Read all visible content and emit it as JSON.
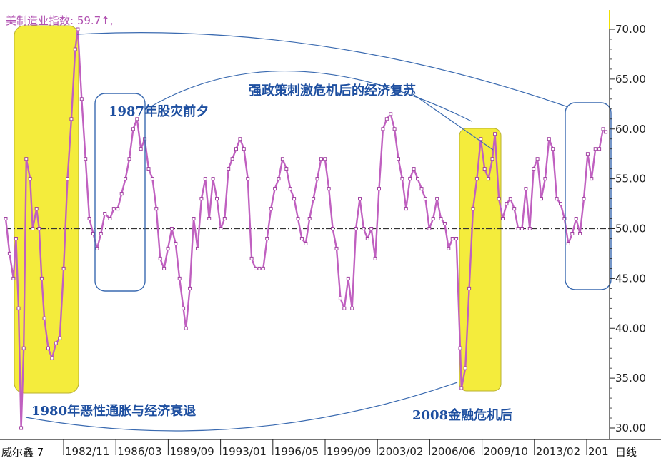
{
  "header": {
    "indicator_label": "美制造业指数: 59.7↑,"
  },
  "footer": {
    "left_label": "威尔鑫 7",
    "right_label": "日线"
  },
  "annotations": {
    "a1987": "1987年股灾前夕",
    "stimulus": "强政策刺激危机后的经济复苏",
    "a1980": "1980年恶性通胀与经济衰退",
    "a2008": "2008金融危机后"
  },
  "colors": {
    "series": "#c060c0",
    "highlight": "#f4ec3c",
    "box": "#3a6ab0",
    "axis": "#222222"
  },
  "chart_data": {
    "type": "line",
    "title": "",
    "xlabel": "",
    "ylabel": "",
    "ylim": [
      29.0,
      72.0
    ],
    "reference_line": 50.0,
    "x_tick_labels": [
      "1982/11",
      "1986/03",
      "1989/09",
      "1993/01",
      "1996/05",
      "1999/09",
      "2003/02",
      "2006/06",
      "2009/10",
      "2013/02",
      "201"
    ],
    "y_tick_labels": [
      "30.00",
      "35.00",
      "40.00",
      "45.00",
      "50.00",
      "55.00",
      "60.00",
      "65.00",
      "70.00"
    ],
    "series": [
      {
        "name": "",
        "points": [
          [
            "1979/06",
            51.0
          ],
          [
            "1979/09",
            47.5
          ],
          [
            "1979/12",
            45.0
          ],
          [
            "1980/02",
            49.0
          ],
          [
            "1980/04",
            42.0
          ],
          [
            "1980/06",
            30.0
          ],
          [
            "1980/08",
            38.0
          ],
          [
            "1980/10",
            57.0
          ],
          [
            "1981/01",
            55.0
          ],
          [
            "1981/03",
            50.0
          ],
          [
            "1981/06",
            52.0
          ],
          [
            "1981/08",
            50.0
          ],
          [
            "1981/10",
            45.0
          ],
          [
            "1981/12",
            41.0
          ],
          [
            "1982/03",
            38.0
          ],
          [
            "1982/06",
            37.0
          ],
          [
            "1982/09",
            38.5
          ],
          [
            "1982/12",
            39.0
          ],
          [
            "1983/03",
            46.0
          ],
          [
            "1983/06",
            55.0
          ],
          [
            "1983/09",
            61.0
          ],
          [
            "1983/12",
            68.0
          ],
          [
            "1984/02",
            70.0
          ],
          [
            "1984/05",
            63.0
          ],
          [
            "1984/08",
            57.0
          ],
          [
            "1984/11",
            51.0
          ],
          [
            "1985/02",
            49.5
          ],
          [
            "1985/05",
            48.0
          ],
          [
            "1985/08",
            49.5
          ],
          [
            "1985/11",
            51.5
          ],
          [
            "1986/03",
            51.0
          ],
          [
            "1986/06",
            52.0
          ],
          [
            "1986/09",
            52.0
          ],
          [
            "1986/12",
            53.5
          ],
          [
            "1987/03",
            55.0
          ],
          [
            "1987/06",
            57.0
          ],
          [
            "1987/09",
            60.0
          ],
          [
            "1987/12",
            61.0
          ],
          [
            "1988/03",
            58.0
          ],
          [
            "1988/06",
            59.0
          ],
          [
            "1988/09",
            56.0
          ],
          [
            "1988/12",
            55.0
          ],
          [
            "1989/03",
            52.0
          ],
          [
            "1989/06",
            47.0
          ],
          [
            "1989/09",
            46.0
          ],
          [
            "1989/12",
            48.0
          ],
          [
            "1990/03",
            50.0
          ],
          [
            "1990/06",
            48.5
          ],
          [
            "1990/09",
            45.0
          ],
          [
            "1990/12",
            42.0
          ],
          [
            "1991/02",
            40.0
          ],
          [
            "1991/05",
            44.0
          ],
          [
            "1991/08",
            51.0
          ],
          [
            "1991/11",
            48.0
          ],
          [
            "1992/02",
            53.0
          ],
          [
            "1992/05",
            55.0
          ],
          [
            "1992/08",
            51.0
          ],
          [
            "1992/11",
            55.0
          ],
          [
            "1993/02",
            53.0
          ],
          [
            "1993/05",
            50.0
          ],
          [
            "1993/08",
            51.0
          ],
          [
            "1993/11",
            56.0
          ],
          [
            "1994/02",
            57.0
          ],
          [
            "1994/05",
            58.0
          ],
          [
            "1994/08",
            59.0
          ],
          [
            "1994/11",
            58.0
          ],
          [
            "1995/02",
            55.0
          ],
          [
            "1995/05",
            47.0
          ],
          [
            "1995/08",
            46.0
          ],
          [
            "1995/11",
            46.0
          ],
          [
            "1996/02",
            46.0
          ],
          [
            "1996/05",
            49.0
          ],
          [
            "1996/08",
            52.0
          ],
          [
            "1996/11",
            54.0
          ],
          [
            "1997/02",
            55.0
          ],
          [
            "1997/05",
            57.0
          ],
          [
            "1997/08",
            56.0
          ],
          [
            "1997/11",
            54.0
          ],
          [
            "1998/02",
            53.0
          ],
          [
            "1998/05",
            51.0
          ],
          [
            "1998/08",
            49.0
          ],
          [
            "1998/11",
            48.5
          ],
          [
            "1999/02",
            51.0
          ],
          [
            "1999/05",
            53.0
          ],
          [
            "1999/08",
            55.0
          ],
          [
            "1999/11",
            57.0
          ],
          [
            "2000/02",
            57.0
          ],
          [
            "2000/05",
            54.0
          ],
          [
            "2000/08",
            50.0
          ],
          [
            "2000/11",
            48.0
          ],
          [
            "2001/02",
            43.0
          ],
          [
            "2001/05",
            42.0
          ],
          [
            "2001/08",
            45.0
          ],
          [
            "2001/11",
            42.0
          ],
          [
            "2002/02",
            50.0
          ],
          [
            "2002/05",
            53.0
          ],
          [
            "2002/08",
            50.0
          ],
          [
            "2002/11",
            49.0
          ],
          [
            "2003/02",
            50.0
          ],
          [
            "2003/05",
            47.0
          ],
          [
            "2003/08",
            54.0
          ],
          [
            "2003/11",
            60.0
          ],
          [
            "2004/02",
            61.0
          ],
          [
            "2004/05",
            61.5
          ],
          [
            "2004/08",
            60.0
          ],
          [
            "2004/11",
            57.0
          ],
          [
            "2005/02",
            55.0
          ],
          [
            "2005/05",
            52.0
          ],
          [
            "2005/08",
            55.0
          ],
          [
            "2005/11",
            56.0
          ],
          [
            "2006/02",
            55.0
          ],
          [
            "2006/05",
            54.0
          ],
          [
            "2006/08",
            53.0
          ],
          [
            "2006/11",
            50.0
          ],
          [
            "2007/02",
            51.0
          ],
          [
            "2007/05",
            53.0
          ],
          [
            "2007/08",
            51.0
          ],
          [
            "2007/11",
            50.5
          ],
          [
            "2008/02",
            48.0
          ],
          [
            "2008/05",
            49.0
          ],
          [
            "2008/08",
            49.0
          ],
          [
            "2008/11",
            38.0
          ],
          [
            "2008/12",
            34.0
          ],
          [
            "2009/03",
            36.0
          ],
          [
            "2009/06",
            44.0
          ],
          [
            "2009/09",
            52.0
          ],
          [
            "2009/12",
            55.0
          ],
          [
            "2010/03",
            59.0
          ],
          [
            "2010/06",
            56.0
          ],
          [
            "2010/09",
            55.0
          ],
          [
            "2010/12",
            57.0
          ],
          [
            "2011/02",
            59.5
          ],
          [
            "2011/05",
            53.0
          ],
          [
            "2011/08",
            51.0
          ],
          [
            "2011/11",
            52.5
          ],
          [
            "2012/02",
            53.0
          ],
          [
            "2012/05",
            52.0
          ],
          [
            "2012/08",
            50.0
          ],
          [
            "2012/11",
            50.0
          ],
          [
            "2013/02",
            54.0
          ],
          [
            "2013/05",
            50.0
          ],
          [
            "2013/08",
            56.0
          ],
          [
            "2013/11",
            57.0
          ],
          [
            "2014/02",
            53.0
          ],
          [
            "2014/05",
            55.0
          ],
          [
            "2014/08",
            59.0
          ],
          [
            "2014/11",
            58.0
          ],
          [
            "2015/02",
            53.0
          ],
          [
            "2015/05",
            52.5
          ],
          [
            "2015/08",
            51.0
          ],
          [
            "2015/11",
            48.5
          ],
          [
            "2016/02",
            49.5
          ],
          [
            "2016/05",
            51.0
          ],
          [
            "2016/08",
            49.5
          ],
          [
            "2016/11",
            53.0
          ],
          [
            "2017/02",
            57.5
          ],
          [
            "2017/05",
            55.0
          ],
          [
            "2017/08",
            58.0
          ],
          [
            "2017/11",
            58.0
          ],
          [
            "2018/02",
            60.0
          ],
          [
            "2018/04",
            59.7
          ]
        ]
      }
    ]
  }
}
